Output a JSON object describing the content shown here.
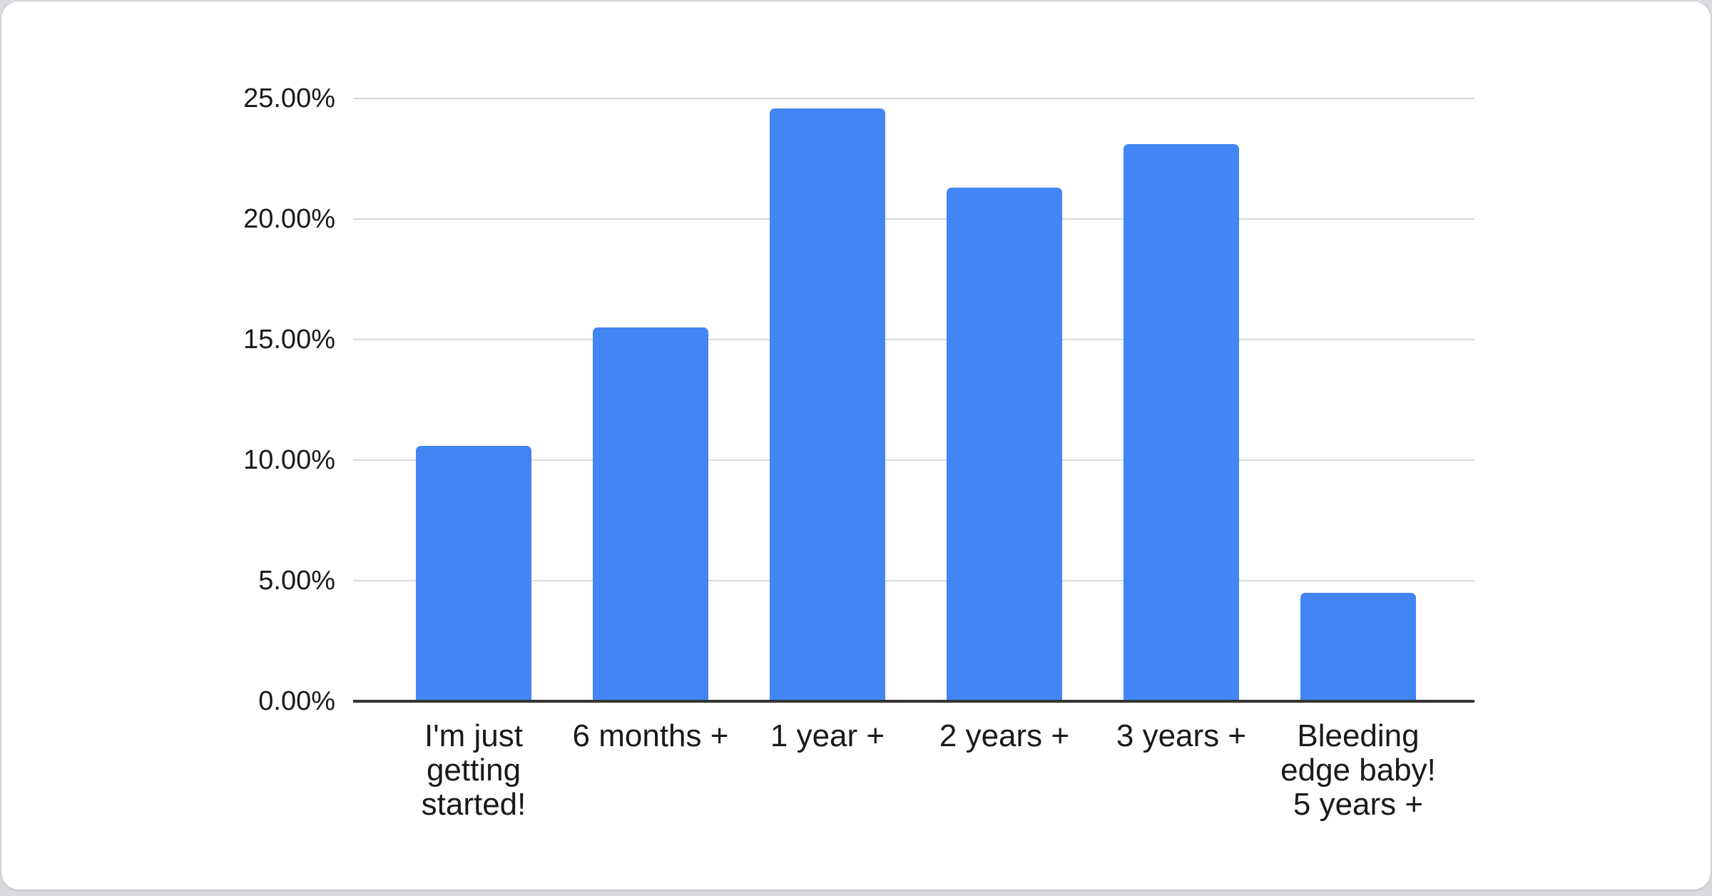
{
  "chart_data": {
    "type": "bar",
    "title": "",
    "categories": [
      "I'm just\ngetting\nstarted!",
      "6 months +",
      "1 year +",
      "2 years +",
      "3 years +",
      "Bleeding\nedge baby!\n5 years +"
    ],
    "values": [
      10.6,
      15.5,
      24.6,
      21.3,
      23.1,
      4.5
    ],
    "value_unit": "percent",
    "yticks": [
      {
        "label": "0.00%",
        "value": 0
      },
      {
        "label": "5.00%",
        "value": 5
      },
      {
        "label": "10.00%",
        "value": 10
      },
      {
        "label": "15.00%",
        "value": 15
      },
      {
        "label": "20.00%",
        "value": 20
      },
      {
        "label": "25.00%",
        "value": 25
      }
    ],
    "ylim": [
      0,
      25
    ],
    "xlabel": "",
    "ylabel": "",
    "grid": true,
    "legend": "none",
    "colors": {
      "bar": "#4285f4",
      "gridline": "#d9d9d9",
      "axis_line": "#333333",
      "label_text": "#1a1a1a",
      "card_bg": "#ffffff",
      "page_bg": "#d9dbdf"
    }
  }
}
